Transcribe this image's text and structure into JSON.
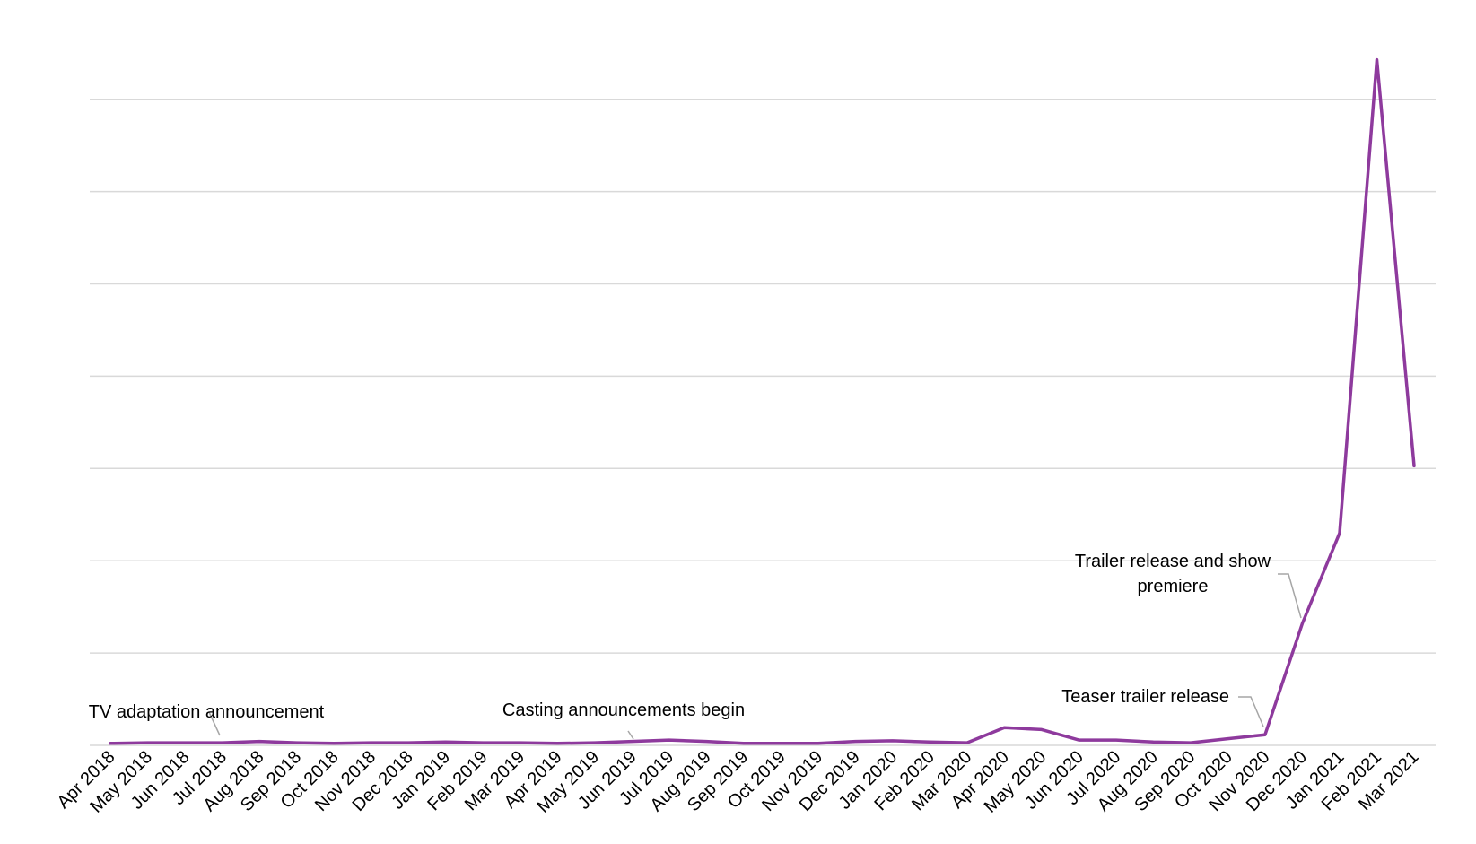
{
  "chart_data": {
    "type": "line",
    "title": "",
    "xlabel": "",
    "ylabel": "",
    "grid": true,
    "legend": "none",
    "ylim": [
      0,
      100
    ],
    "line_color": "#8E3A9D",
    "grid_color": "#D9D9D9",
    "categories": [
      "Apr 2018",
      "May 2018",
      "Jun 2018",
      "Jul 2018",
      "Aug 2018",
      "Sep 2018",
      "Oct 2018",
      "Nov 2018",
      "Dec 2018",
      "Jan 2019",
      "Feb 2019",
      "Mar 2019",
      "Apr 2019",
      "May 2019",
      "Jun 2019",
      "Jul 2019",
      "Aug 2019",
      "Sep 2019",
      "Oct 2019",
      "Nov 2019",
      "Dec 2019",
      "Jan 2020",
      "Feb 2020",
      "Mar 2020",
      "Apr 2020",
      "May 2020",
      "Jun 2020",
      "Jul 2020",
      "Aug 2020",
      "Sep 2020",
      "Oct 2020",
      "Nov 2020",
      "Dec 2020",
      "Jan 2021",
      "Feb 2021",
      "Mar 2021"
    ],
    "values": [
      0.3,
      0.4,
      0.4,
      0.4,
      0.6,
      0.4,
      0.3,
      0.4,
      0.4,
      0.5,
      0.4,
      0.4,
      0.3,
      0.4,
      0.6,
      0.8,
      0.6,
      0.3,
      0.3,
      0.3,
      0.6,
      0.7,
      0.5,
      0.4,
      2.7,
      2.4,
      0.8,
      0.8,
      0.5,
      0.4,
      1.0,
      1.6,
      18.5,
      32.2,
      104.0,
      42.4
    ],
    "annotations": [
      {
        "lines": [
          "TV adaptation announcement"
        ],
        "category": "Jul 2018"
      },
      {
        "lines": [
          "Casting announcements begin"
        ],
        "category": "Jun 2019"
      },
      {
        "lines": [
          "Teaser trailer release"
        ],
        "category": "Nov 2020"
      },
      {
        "lines": [
          "Trailer release and show",
          "premiere"
        ],
        "category": "Dec 2020"
      }
    ]
  }
}
